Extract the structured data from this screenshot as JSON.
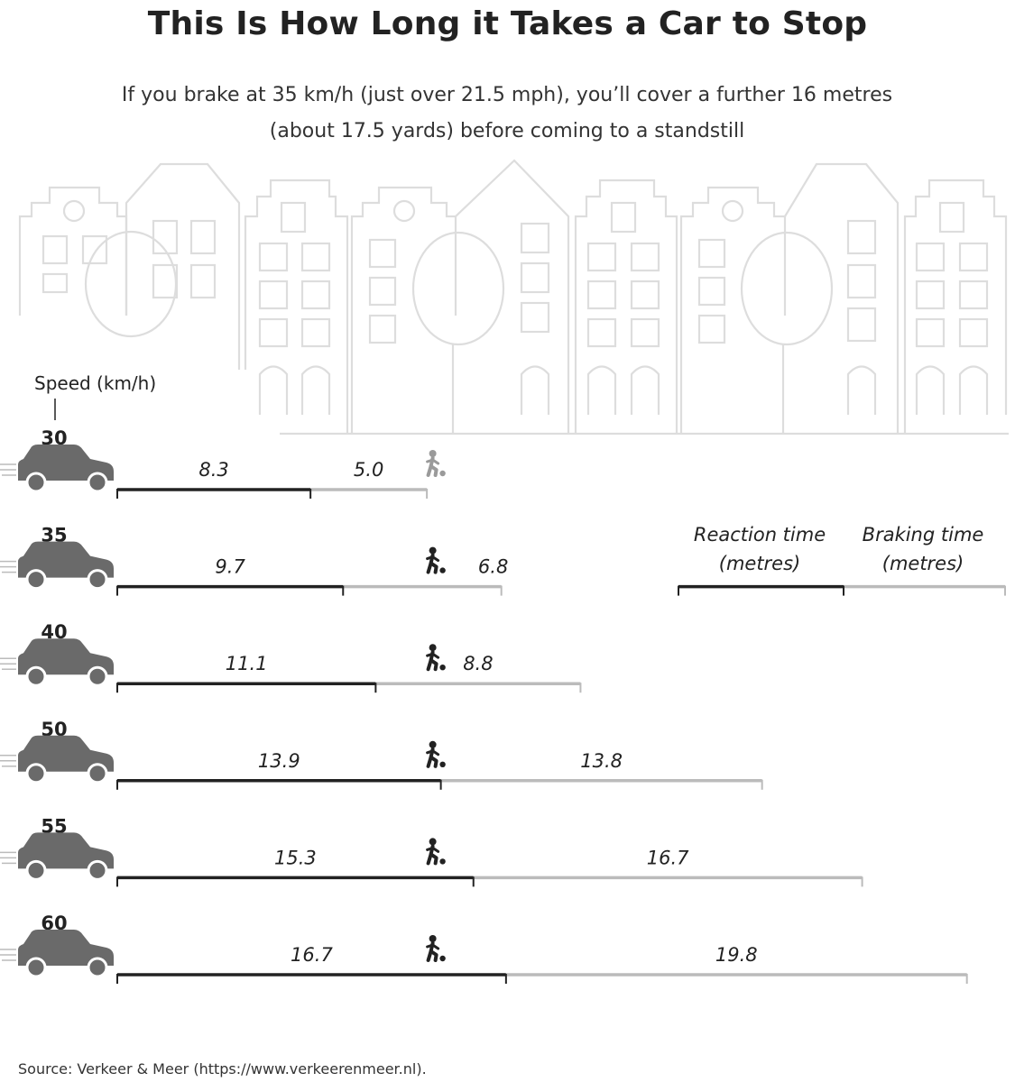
{
  "title": "This Is How Long it Takes a Car to Stop",
  "subtitle": "If you brake at 35 km/h (just over 21.5 mph), you’ll cover a further 16 metres (about 17.5 yards) before coming to a standstill",
  "source": "Source: Verkeer & Meer (https://www.verkeerenmeer.nl).",
  "chart_data": {
    "type": "bar",
    "orientation": "horizontal-stacked",
    "ylabel": "Speed (km/h)",
    "categories": [
      "30",
      "35",
      "40",
      "50",
      "55",
      "60"
    ],
    "series": [
      {
        "name": "Reaction time (metres)",
        "values": [
          8.3,
          9.7,
          11.1,
          13.9,
          15.3,
          16.7
        ],
        "labels": [
          "8.3",
          "9.7",
          "11.1",
          "13.9",
          "15.3",
          "16.7"
        ],
        "color": "#222222"
      },
      {
        "name": "Braking time (metres)",
        "values": [
          5.0,
          6.8,
          8.8,
          13.8,
          16.7,
          19.8
        ],
        "labels": [
          "5.0",
          "6.8",
          "8.8",
          "13.8",
          "16.7",
          "19.8"
        ],
        "color": "#bbbbbb"
      }
    ],
    "pedestrian_at_m": 13.9,
    "legend": {
      "placement": "right, beside 35 km/h row",
      "reaction_line1": "Reaction time",
      "reaction_line2": "(metres)",
      "braking_line1": "Braking time",
      "braking_line2": "(metres)"
    },
    "colors": {
      "car": "#6a6a6a",
      "pedestrian_dark": "#222222",
      "pedestrian_light": "#9a9a9a",
      "skyline": "#dddddd"
    }
  }
}
